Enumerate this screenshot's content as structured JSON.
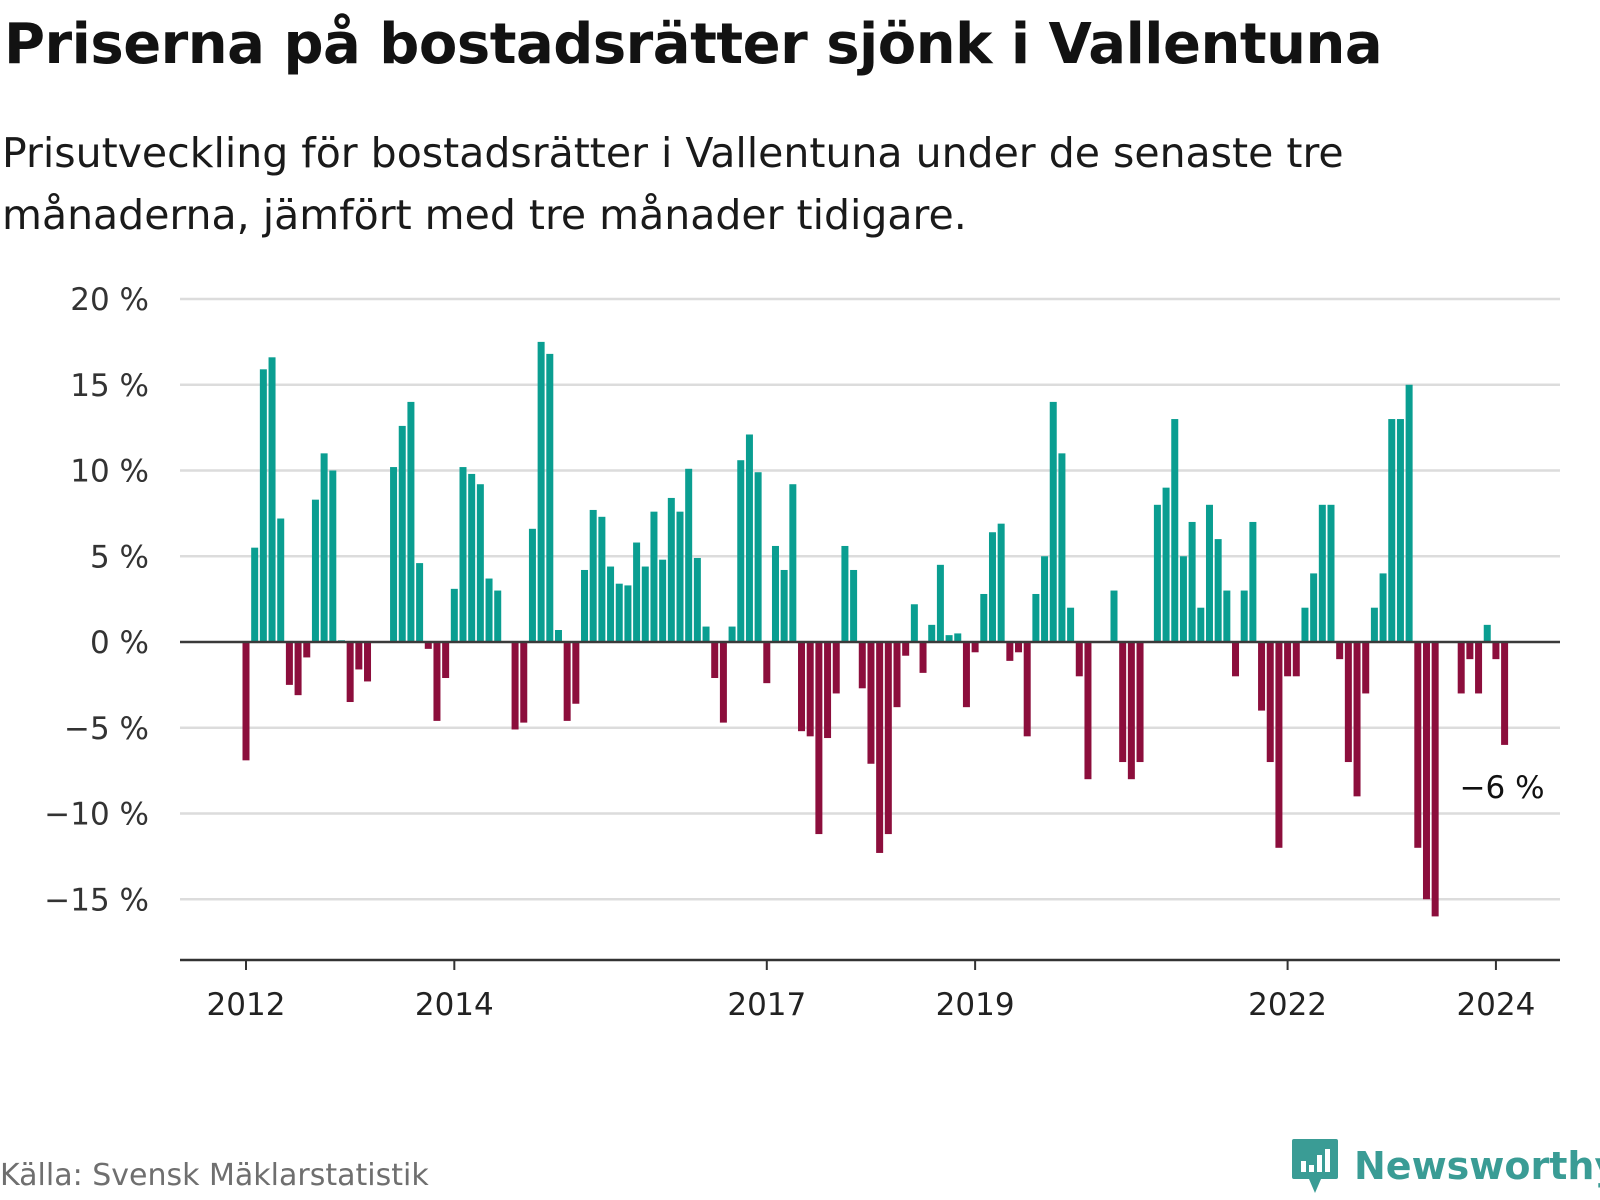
{
  "header": {
    "title": "Priserna på bostadsrätter sjönk i Vallentuna",
    "subtitle": "Prisutveckling för bostadsrätter i Vallentuna under de senaste tre månaderna, jämfört med tre månader tidigare."
  },
  "footer": {
    "source": "Källa: Svensk Mäklarstatistik",
    "brand": "Newsworthy"
  },
  "colors": {
    "positive": "#0a9e91",
    "negative": "#8c0e3c",
    "grid": "#dcdcdc",
    "axis": "#333333",
    "brand": "#3a9c95"
  },
  "chart_data": {
    "type": "bar",
    "title": "Priserna på bostadsrätter sjönk i Vallentuna",
    "ylabel": "",
    "xlabel": "",
    "ylim": [
      -18,
      20
    ],
    "yticks": [
      {
        "value": 20,
        "label": "20 %"
      },
      {
        "value": 15,
        "label": "15 %"
      },
      {
        "value": 10,
        "label": "10 %"
      },
      {
        "value": 5,
        "label": "5 %"
      },
      {
        "value": 0,
        "label": "0 %"
      },
      {
        "value": -5,
        "label": "−5 %"
      },
      {
        "value": -10,
        "label": "−10 %"
      },
      {
        "value": -15,
        "label": "−15 %"
      }
    ],
    "xticks": [
      {
        "index": 0,
        "label": "2012"
      },
      {
        "index": 24,
        "label": "2014"
      },
      {
        "index": 60,
        "label": "2017"
      },
      {
        "index": 84,
        "label": "2019"
      },
      {
        "index": 120,
        "label": "2022"
      },
      {
        "index": 144,
        "label": "2024"
      }
    ],
    "start": "2012-01",
    "frequency": "monthly",
    "values": [
      -6.9,
      5.5,
      15.9,
      16.6,
      7.2,
      -2.5,
      -3.1,
      -0.9,
      8.3,
      11.0,
      10.0,
      0.1,
      -3.5,
      -1.6,
      -2.3,
      null,
      null,
      10.2,
      12.6,
      14.0,
      4.6,
      -0.4,
      -4.6,
      -2.1,
      3.1,
      10.2,
      9.8,
      9.2,
      3.7,
      3.0,
      null,
      -5.1,
      -4.7,
      6.6,
      17.5,
      16.8,
      0.7,
      -4.6,
      -3.6,
      4.2,
      7.7,
      7.3,
      4.4,
      3.4,
      3.3,
      5.8,
      4.4,
      7.6,
      4.8,
      8.4,
      7.6,
      10.1,
      4.9,
      0.9,
      -2.1,
      -4.7,
      0.9,
      10.6,
      12.1,
      9.9,
      -2.4,
      5.6,
      4.2,
      9.2,
      -5.2,
      -5.5,
      -11.2,
      -5.6,
      -3.0,
      5.6,
      4.2,
      -2.7,
      -7.1,
      -12.3,
      -11.2,
      -3.8,
      -0.8,
      2.2,
      -1.8,
      1.0,
      4.5,
      0.4,
      0.5,
      -3.8,
      -0.6,
      2.8,
      6.4,
      6.9,
      -1.1,
      -0.6,
      -5.5,
      2.8,
      5.0,
      14.0,
      11.0,
      2.0,
      -2.0,
      -8.0,
      null,
      null,
      3.0,
      -7.0,
      -8.0,
      -7.0,
      null,
      8.0,
      9.0,
      13.0,
      5.0,
      7.0,
      2.0,
      8.0,
      6.0,
      3.0,
      -2.0,
      3.0,
      7.0,
      -4.0,
      -7.0,
      -12.0,
      -2.0,
      -2.0,
      2.0,
      4.0,
      8.0,
      8.0,
      -1.0,
      -7.0,
      -9.0,
      -3.0,
      2.0,
      4.0,
      13.0,
      13.0,
      15.0,
      -12.0,
      -15.0,
      -16.0,
      null,
      null,
      -3.0,
      -1.0,
      -3.0,
      1.0,
      -1.0,
      -6.0
    ],
    "last_value_label": "−6 %"
  }
}
